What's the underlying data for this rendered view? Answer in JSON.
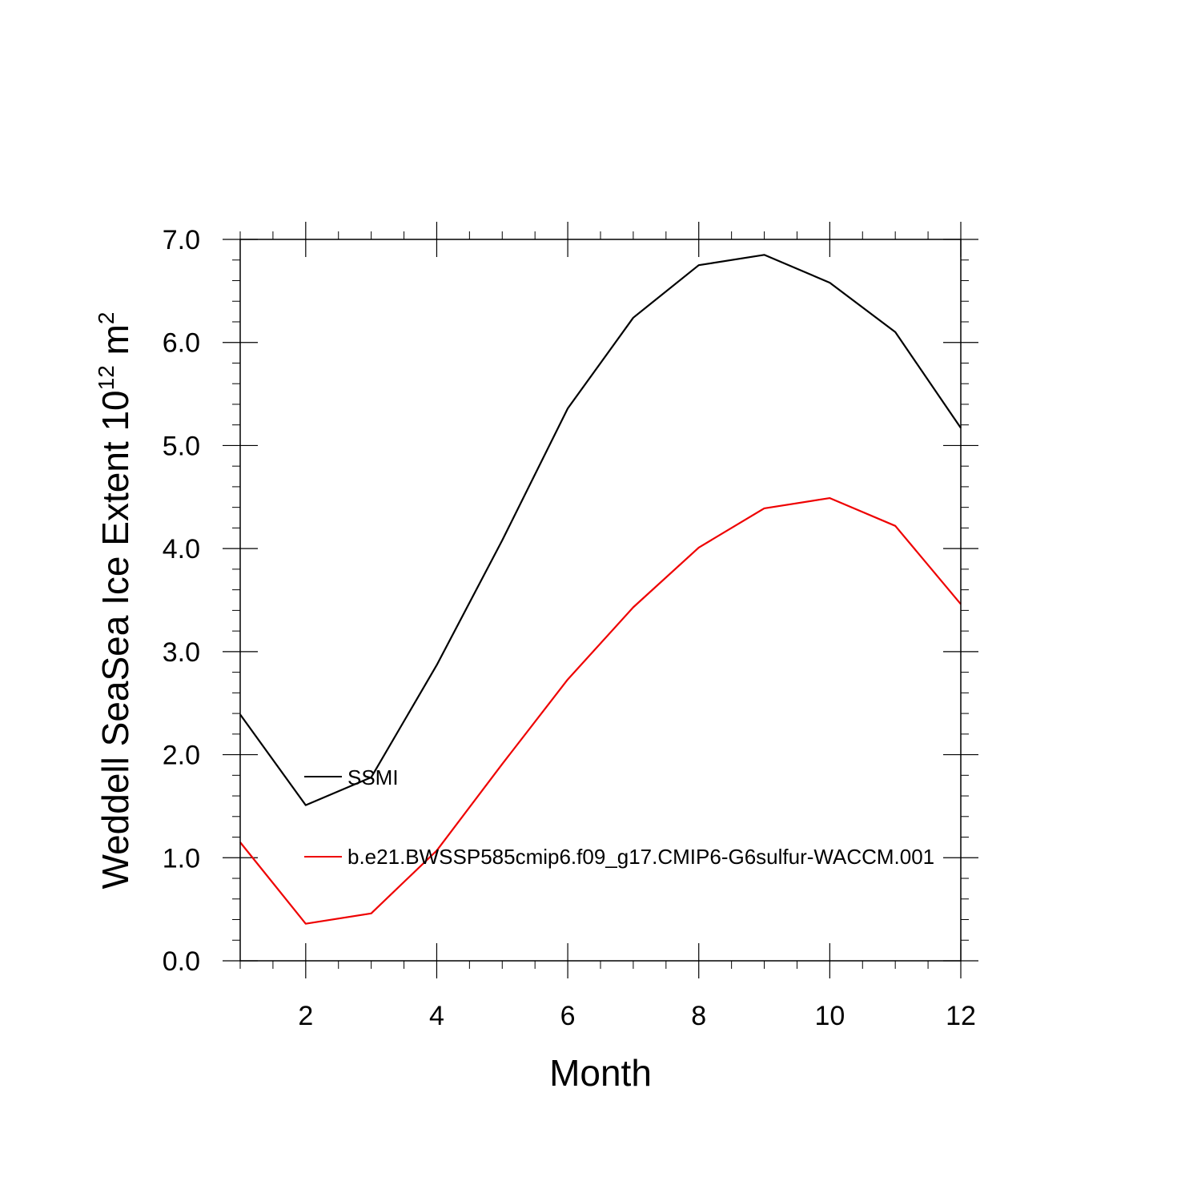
{
  "chart_data": {
    "type": "line",
    "title": "",
    "xlabel": "Month",
    "ylabel": {
      "prefix": "Weddell SeaSea Ice Extent 10",
      "exponent": "12",
      "unit": " m",
      "unit_exponent": "2"
    },
    "xlim": [
      1,
      12
    ],
    "ylim": [
      0,
      7
    ],
    "x_major_ticks": [
      2,
      4,
      6,
      8,
      10,
      12
    ],
    "x_minor_step": 0.5,
    "y_major_ticks": [
      0,
      1,
      2,
      3,
      4,
      5,
      6,
      7
    ],
    "y_tick_labels": [
      "0.0",
      "1.0",
      "2.0",
      "3.0",
      "4.0",
      "5.0",
      "6.0",
      "7.0"
    ],
    "y_minor_step": 0.2,
    "grid": false,
    "legend_position": "inside-left",
    "x": [
      1,
      2,
      3,
      4,
      5,
      6,
      7,
      8,
      9,
      10,
      11,
      12
    ],
    "series": [
      {
        "name": "SSMI",
        "color": "#000000",
        "values": [
          2.39,
          1.51,
          1.78,
          2.87,
          4.08,
          5.36,
          6.24,
          6.75,
          6.85,
          6.58,
          6.1,
          5.17
        ]
      },
      {
        "name": "b.e21.BWSSP585cmip6.f09_g17.CMIP6-G6sulfur-WACCM.001",
        "color": "#ee0000",
        "values": [
          1.15,
          0.36,
          0.46,
          1.07,
          1.91,
          2.73,
          3.43,
          4.01,
          4.39,
          4.49,
          4.22,
          3.46
        ]
      }
    ]
  }
}
